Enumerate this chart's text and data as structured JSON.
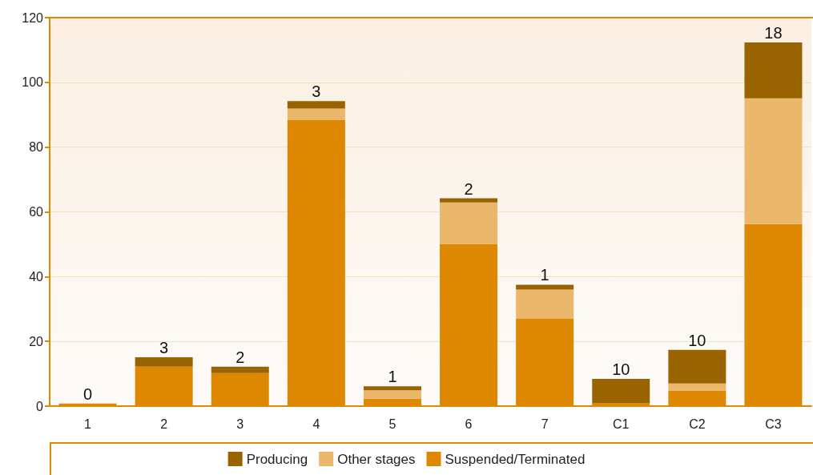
{
  "chart_data": {
    "type": "bar",
    "stacked": true,
    "categories": [
      "1",
      "2",
      "3",
      "4",
      "5",
      "6",
      "7",
      "C1",
      "C2",
      "C3"
    ],
    "series": [
      {
        "name": "Suspended/Terminated",
        "color": "#dd8800",
        "values": [
          0.8,
          12.2,
          10.2,
          88.3,
          2.3,
          50.1,
          27.0,
          1.0,
          4.8,
          56.2
        ]
      },
      {
        "name": "Other stages",
        "color": "#ebb86b",
        "values": [
          0,
          0,
          0,
          3.6,
          2.6,
          12.8,
          9.0,
          0,
          2.2,
          38.9
        ]
      },
      {
        "name": "Producing",
        "color": "#996300",
        "values": [
          0,
          2.9,
          2.0,
          2.3,
          1.2,
          1.3,
          1.5,
          7.4,
          10.4,
          17.2
        ]
      }
    ],
    "annotations": [
      {
        "text": "0",
        "x": "1",
        "y": 0.8
      },
      {
        "text": "3",
        "x": "2",
        "y": 15.1
      },
      {
        "text": "2",
        "x": "3",
        "y": 12.2
      },
      {
        "text": "3",
        "x": "4",
        "y": 94.2
      },
      {
        "text": "1",
        "x": "5",
        "y": 6.1
      },
      {
        "text": "2",
        "x": "6",
        "y": 64.2
      },
      {
        "text": "1",
        "x": "7",
        "y": 37.5
      },
      {
        "text": "10",
        "x": "C1",
        "y": 8.4
      },
      {
        "text": "10",
        "x": "C2",
        "y": 17.4
      },
      {
        "text": "18",
        "x": "C3",
        "y": 112.3
      }
    ],
    "ylim": [
      0,
      120
    ],
    "yticks": [
      0,
      20,
      40,
      60,
      80,
      100,
      120
    ],
    "grid": "y",
    "legend": "bottom"
  }
}
